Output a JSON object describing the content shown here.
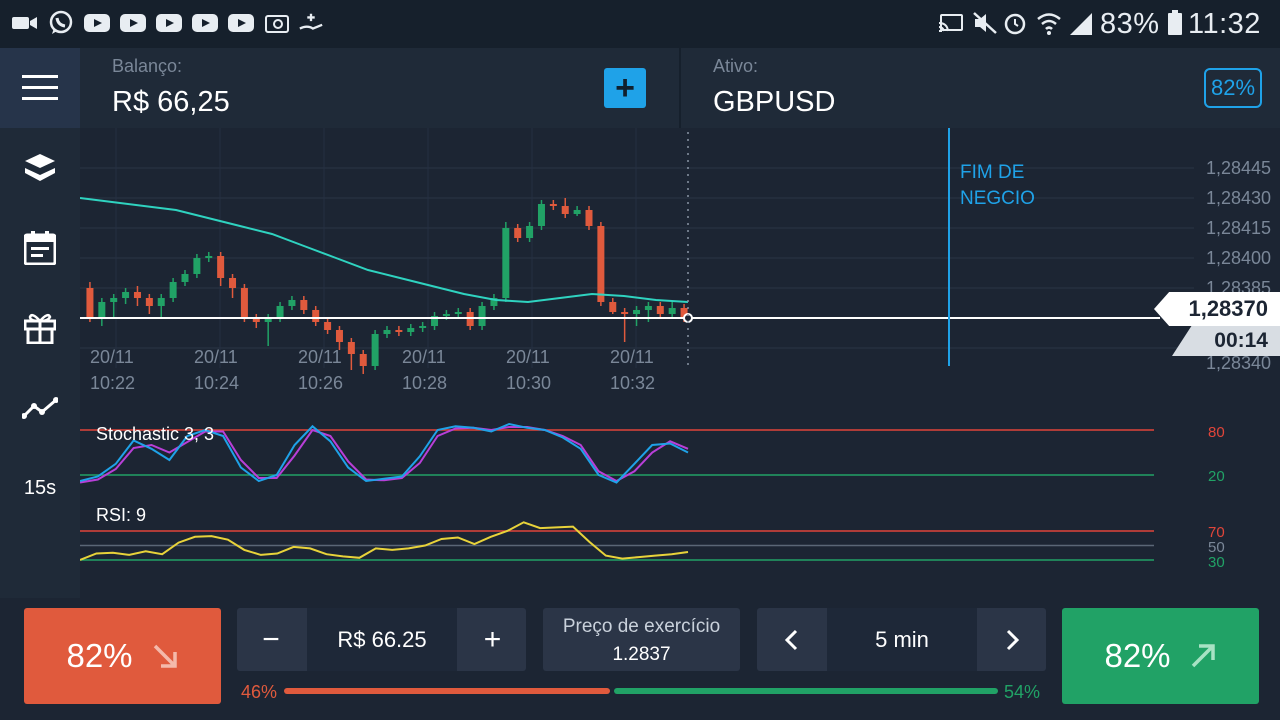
{
  "statusbar": {
    "icons": [
      "video-icon",
      "whatsapp-icon",
      "youtube-icon",
      "youtube-icon",
      "youtube-icon",
      "youtube-icon",
      "youtube-icon",
      "email-icon",
      "hand-money-icon",
      "cast-icon",
      "mute-icon",
      "alarm-icon",
      "wifi-icon",
      "signal-icon",
      "battery-icon"
    ],
    "battery": "83%",
    "time": "11:32"
  },
  "header": {
    "balance_label": "Balanço:",
    "balance_value": "R$ 66,25",
    "asset_label": "Ativo:",
    "asset_value": "GBPUSD",
    "payout": "82%"
  },
  "sidebar": {
    "items": [
      {
        "icon": "menu-icon"
      },
      {
        "icon": "layers-icon"
      },
      {
        "icon": "calendar-icon"
      },
      {
        "icon": "gift-icon"
      },
      {
        "icon": "trend-line-icon"
      },
      {
        "label": "15s"
      }
    ]
  },
  "chart": {
    "expiry_label_1": "FIM DE",
    "expiry_label_2": "NEGCIO",
    "current_price": "1,28370",
    "countdown": "00:14",
    "colors": {
      "up": "#21a266",
      "down": "#e05a3d",
      "ma": "#2fd3c0",
      "stoch_k": "#1fa2e8",
      "stoch_d": "#b83fd8",
      "rsi": "#e8d33a"
    },
    "stochastic_label": "Stochastic 3, 3",
    "rsi_label": "RSI: 9",
    "stoch_levels": [
      "80",
      "20"
    ],
    "rsi_levels": [
      "70",
      "50",
      "30"
    ]
  },
  "chart_data": {
    "type": "candlestick",
    "y_tick_labels": [
      "1,28445",
      "1,28430",
      "1,28415",
      "1,28400",
      "1,28385",
      "1,28340"
    ],
    "x_tick_labels": [
      {
        "date": "20/11",
        "time": "10:22"
      },
      {
        "date": "20/11",
        "time": "10:24"
      },
      {
        "date": "20/11",
        "time": "10:26"
      },
      {
        "date": "20/11",
        "time": "10:28"
      },
      {
        "date": "20/11",
        "time": "10:30"
      },
      {
        "date": "20/11",
        "time": "10:32"
      }
    ],
    "ylim": [
      1.2834,
      1.2846
    ],
    "candles": [
      [
        1.28385,
        1.2837,
        1.28388,
        1.28368
      ],
      [
        1.2837,
        1.28378,
        1.2838,
        1.28366
      ],
      [
        1.28378,
        1.2838,
        1.28382,
        1.2837
      ],
      [
        1.2838,
        1.28383,
        1.28385,
        1.28377
      ],
      [
        1.28383,
        1.2838,
        1.28386,
        1.28376
      ],
      [
        1.2838,
        1.28376,
        1.28382,
        1.28372
      ],
      [
        1.28376,
        1.2838,
        1.28382,
        1.2837
      ],
      [
        1.2838,
        1.28388,
        1.2839,
        1.28378
      ],
      [
        1.28388,
        1.28392,
        1.28394,
        1.28386
      ],
      [
        1.28392,
        1.284,
        1.28402,
        1.2839
      ],
      [
        1.284,
        1.28401,
        1.28403,
        1.28398
      ],
      [
        1.28401,
        1.2839,
        1.28403,
        1.28386
      ],
      [
        1.2839,
        1.28385,
        1.28392,
        1.2838
      ],
      [
        1.28385,
        1.2837,
        1.28387,
        1.28368
      ],
      [
        1.2837,
        1.28368,
        1.28372,
        1.28365
      ],
      [
        1.28368,
        1.2837,
        1.28372,
        1.28356
      ],
      [
        1.2837,
        1.28376,
        1.28378,
        1.28368
      ],
      [
        1.28376,
        1.28379,
        1.28381,
        1.28374
      ],
      [
        1.28379,
        1.28374,
        1.28381,
        1.28372
      ],
      [
        1.28374,
        1.28368,
        1.28376,
        1.28366
      ],
      [
        1.28368,
        1.28364,
        1.2837,
        1.28362
      ],
      [
        1.28364,
        1.28358,
        1.28366,
        1.28354
      ],
      [
        1.28358,
        1.28352,
        1.2836,
        1.28344
      ],
      [
        1.28352,
        1.28346,
        1.28354,
        1.28342
      ],
      [
        1.28346,
        1.28362,
        1.28364,
        1.28344
      ],
      [
        1.28362,
        1.28364,
        1.28366,
        1.2836
      ],
      [
        1.28364,
        1.28363,
        1.28366,
        1.28361
      ],
      [
        1.28363,
        1.28365,
        1.28367,
        1.28361
      ],
      [
        1.28365,
        1.28366,
        1.28368,
        1.28363
      ],
      [
        1.28366,
        1.28371,
        1.28373,
        1.28364
      ],
      [
        1.28371,
        1.28372,
        1.28374,
        1.28369
      ],
      [
        1.28372,
        1.28373,
        1.28375,
        1.2837
      ],
      [
        1.28373,
        1.28366,
        1.28375,
        1.28364
      ],
      [
        1.28366,
        1.28376,
        1.28378,
        1.28364
      ],
      [
        1.28376,
        1.2838,
        1.28382,
        1.28374
      ],
      [
        1.2838,
        1.28415,
        1.28418,
        1.28378
      ],
      [
        1.28415,
        1.2841,
        1.28417,
        1.28408
      ],
      [
        1.2841,
        1.28416,
        1.28418,
        1.28408
      ],
      [
        1.28416,
        1.28427,
        1.28429,
        1.28414
      ],
      [
        1.28427,
        1.28426,
        1.28429,
        1.28424
      ],
      [
        1.28426,
        1.28422,
        1.2843,
        1.2842
      ],
      [
        1.28422,
        1.28424,
        1.28426,
        1.28421
      ],
      [
        1.28424,
        1.28416,
        1.28426,
        1.28414
      ],
      [
        1.28416,
        1.28378,
        1.28418,
        1.28376
      ],
      [
        1.28378,
        1.28373,
        1.2838,
        1.28372
      ],
      [
        1.28373,
        1.28372,
        1.28375,
        1.28358
      ],
      [
        1.28372,
        1.28374,
        1.28376,
        1.28366
      ],
      [
        1.28374,
        1.28376,
        1.28378,
        1.28368
      ],
      [
        1.28376,
        1.28372,
        1.28378,
        1.2837
      ],
      [
        1.28372,
        1.28375,
        1.28378,
        1.2837
      ],
      [
        1.28375,
        1.2837,
        1.28377,
        1.28368
      ]
    ],
    "moving_average": [
      1.2843,
      1.28428,
      1.28426,
      1.28424,
      1.2842,
      1.28416,
      1.28412,
      1.28406,
      1.284,
      1.28394,
      1.2839,
      1.28386,
      1.28382,
      1.28379,
      1.28378,
      1.2838,
      1.28382,
      1.28381,
      1.28379,
      1.28378
    ],
    "stochastic_k": [
      12,
      18,
      35,
      66,
      55,
      40,
      72,
      80,
      72,
      30,
      12,
      20,
      60,
      85,
      65,
      30,
      12,
      15,
      18,
      45,
      80,
      85,
      83,
      78,
      88,
      83,
      80,
      70,
      55,
      20,
      10,
      35,
      60,
      62,
      50
    ],
    "stochastic_d": [
      10,
      14,
      28,
      56,
      60,
      50,
      64,
      78,
      78,
      40,
      16,
      16,
      46,
      80,
      72,
      38,
      14,
      13,
      16,
      36,
      72,
      82,
      83,
      80,
      84,
      84,
      80,
      72,
      60,
      25,
      12,
      25,
      50,
      65,
      55
    ],
    "rsi": [
      30,
      39,
      40,
      37,
      42,
      38,
      54,
      62,
      63,
      58,
      44,
      37,
      39,
      48,
      46,
      38,
      35,
      33,
      46,
      44,
      46,
      50,
      59,
      61,
      52,
      62,
      70,
      82,
      74,
      75,
      76,
      55,
      36,
      32,
      34,
      36,
      38,
      41
    ]
  },
  "trade": {
    "put_payout": "82%",
    "call_payout": "82%",
    "amount": "R$ 66.25",
    "minus": "−",
    "plus": "+",
    "strike_label": "Preço de exercício",
    "strike_value": "1.2837",
    "expiry": "5 min",
    "sentiment_put": "46%",
    "sentiment_call": "54%",
    "sentiment_put_fraction": 0.46
  }
}
